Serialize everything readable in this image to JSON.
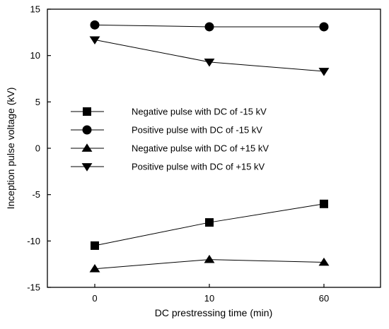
{
  "chart_data": {
    "type": "line",
    "title": "",
    "xlabel": "DC prestressing time (min)",
    "ylabel": "Inception pulse voltage (kV)",
    "categories": [
      "0",
      "10",
      "60"
    ],
    "ylim": [
      -15,
      15
    ],
    "yticks": [
      -15,
      -10,
      -5,
      0,
      5,
      10,
      15
    ],
    "ytick_labels": [
      "-15",
      "-10",
      "-5",
      "0",
      "5",
      "10",
      "15"
    ],
    "grid": false,
    "legend_position": "center-left",
    "series": [
      {
        "name": "Negative pulse with DC of -15 kV",
        "marker": "square",
        "values": [
          -10.5,
          -8.0,
          -6.0
        ]
      },
      {
        "name": "Positive pulse with DC of -15 kV",
        "marker": "circle",
        "values": [
          13.3,
          13.1,
          13.1
        ]
      },
      {
        "name": "Negative pulse with DC of +15 kV",
        "marker": "triangle-up",
        "values": [
          -13.0,
          -12.0,
          -12.3
        ]
      },
      {
        "name": "Positive pulse with DC of +15 kV",
        "marker": "triangle-down",
        "values": [
          11.7,
          9.3,
          8.3
        ]
      }
    ],
    "colors": {
      "line": "#000000",
      "marker": "#000000"
    }
  }
}
